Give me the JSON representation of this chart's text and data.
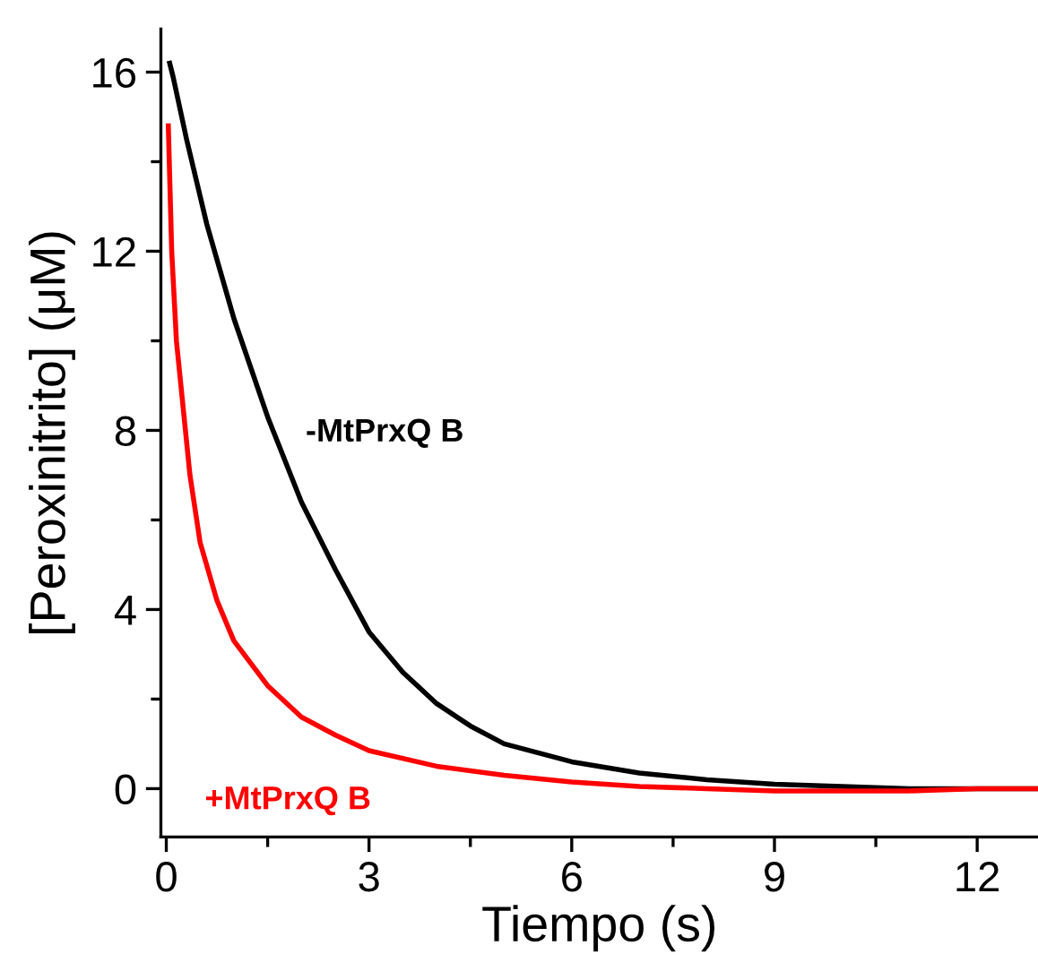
{
  "chart_data": {
    "type": "line",
    "xlabel": "Tiempo (s)",
    "ylabel": "[Peroxinitrito] (μM)",
    "xlim": [
      -0.08,
      12.9
    ],
    "ylim": [
      -1.08,
      16.96
    ],
    "xticks": [
      0,
      3,
      6,
      9,
      12
    ],
    "yticks": [
      0,
      4,
      8,
      12,
      16
    ],
    "grid": false,
    "legend": false,
    "marker": "none",
    "line_style": "solid",
    "series": [
      {
        "name": "-MtPrxQ B",
        "color": "#000000",
        "x": [
          0.05,
          0.1,
          0.3,
          0.6,
          1,
          1.5,
          2,
          2.5,
          3,
          3.5,
          4,
          4.5,
          5,
          6,
          7,
          8,
          9,
          10,
          11,
          12,
          12.9
        ],
        "values": [
          16.2,
          15.9,
          14.5,
          12.6,
          10.5,
          8.3,
          6.4,
          4.9,
          3.5,
          2.6,
          1.9,
          1.4,
          1.0,
          0.6,
          0.35,
          0.2,
          0.1,
          0.05,
          0.0,
          0.0,
          0.0
        ]
      },
      {
        "name": "+MtPrxQ B",
        "color": "#ff0000",
        "x": [
          0.03,
          0.08,
          0.15,
          0.25,
          0.35,
          0.5,
          0.75,
          1,
          1.5,
          2,
          2.5,
          3,
          4,
          5,
          6,
          7,
          8,
          9,
          10,
          11,
          12,
          12.9
        ],
        "values": [
          14.8,
          12,
          10,
          8.5,
          7,
          5.5,
          4.2,
          3.3,
          2.3,
          1.6,
          1.2,
          0.85,
          0.5,
          0.3,
          0.15,
          0.05,
          0.0,
          -0.05,
          -0.05,
          -0.05,
          0.0,
          0.0
        ]
      }
    ]
  }
}
